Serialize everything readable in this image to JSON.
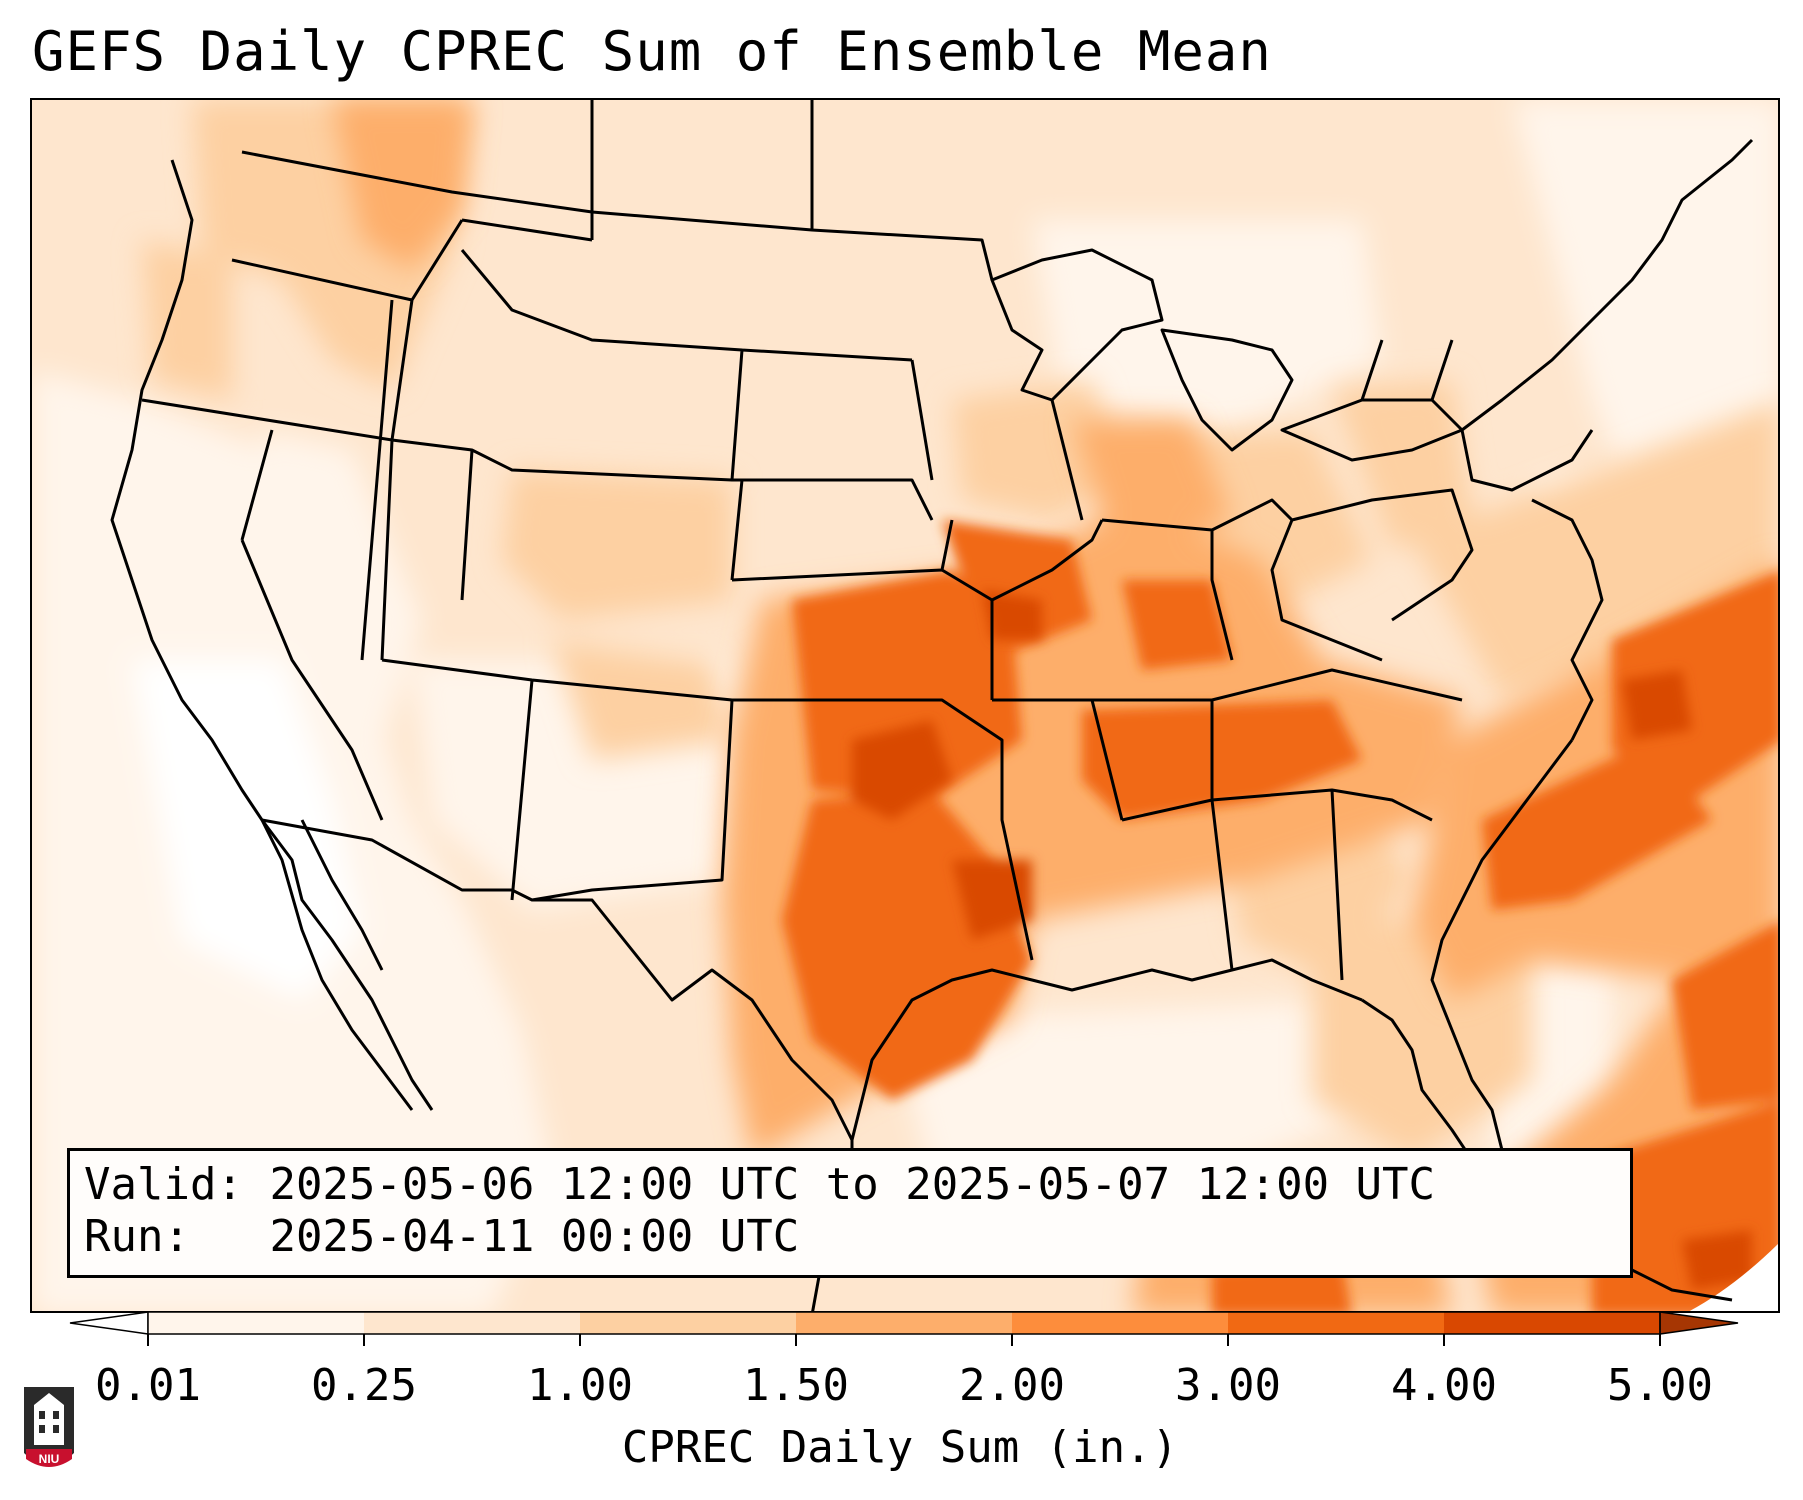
{
  "title": "GEFS Daily CPREC Sum of Ensemble Mean",
  "info": {
    "valid_label": "Valid:",
    "valid_value": "2025-05-06 12:00 UTC to 2025-05-07 12:00 UTC",
    "run_label": "Run:  ",
    "run_value": "2025-04-11 00:00 UTC"
  },
  "colorbar": {
    "title": "CPREC Daily Sum (in.)",
    "ticks": [
      "0.01",
      "0.25",
      "1.00",
      "1.50",
      "2.00",
      "3.00",
      "4.00",
      "5.00"
    ],
    "colors": [
      "#fff5eb",
      "#fee6ce",
      "#fdd0a2",
      "#fdae6b",
      "#fd8d3c",
      "#f16913",
      "#d94801",
      "#a63603"
    ],
    "under_color": "#ffffff",
    "over_color": "#a63603"
  },
  "logo": {
    "text": "NIU",
    "colors": {
      "shield": "#c8102e",
      "tower": "#2a2a2a"
    }
  },
  "map": {
    "region": "Contiguous United States",
    "background_color": "#fee6ce",
    "max_area": "Arkansas / Oklahoma / Missouri, Tennessee Valley, western Atlantic",
    "max_color": "#d94801"
  }
}
